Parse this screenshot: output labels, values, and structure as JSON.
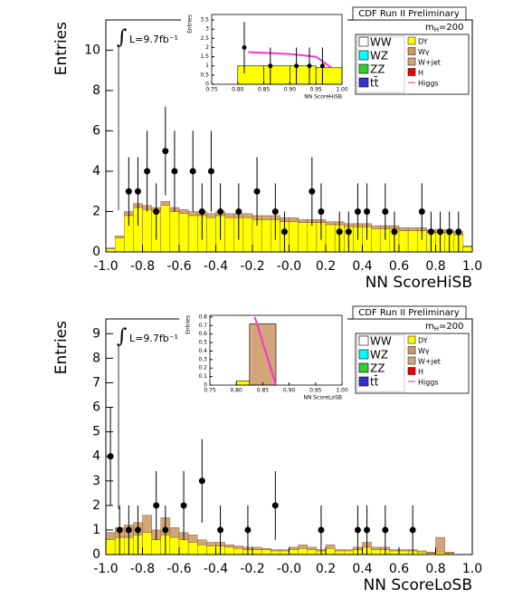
{
  "chart_data": [
    {
      "type": "histogram",
      "title": "CDF Run II Preliminary",
      "mass_label": [
        "m",
        "H",
        "=200"
      ],
      "lumi_label": "L=9.7fb⁻¹",
      "xlabel": "NN ScoreHiSB",
      "ylabel": "Entries",
      "xlim": [
        -1,
        1
      ],
      "ylim": [
        0,
        11.5
      ],
      "xticks": [
        {
          "value": -1,
          "label": "-1.0"
        },
        -0.8,
        -0.6,
        -0.4,
        -0.2,
        {
          "value": 0,
          "label": "-0.0"
        },
        0.2,
        0.4,
        0.6,
        0.8,
        {
          "value": 1,
          "label": "1.0"
        }
      ],
      "yticks": [
        0,
        2,
        4,
        6,
        8,
        10
      ],
      "bins": [
        -1,
        -0.95,
        -0.9,
        -0.85,
        -0.8,
        -0.75,
        -0.7,
        -0.65,
        -0.6,
        -0.55,
        -0.5,
        -0.45,
        -0.4,
        -0.35,
        -0.3,
        -0.25,
        -0.2,
        -0.15,
        -0.1,
        -0.05,
        0,
        0.05,
        0.1,
        0.15,
        0.2,
        0.25,
        0.3,
        0.35,
        0.4,
        0.45,
        0.5,
        0.55,
        0.6,
        0.65,
        0.7,
        0.75,
        0.8,
        0.85,
        0.9,
        0.95,
        1
      ],
      "series": [
        {
          "name": "WW",
          "color": "#ffffff"
        },
        {
          "name": "WZ",
          "color": "#00ffff"
        },
        {
          "name": "ZZ",
          "color": "#33cc33"
        },
        {
          "name": "tt̄",
          "color": "#3333cc"
        },
        {
          "name": "DY",
          "color": "#ffff00",
          "values": [
            0.15,
            0.7,
            1.8,
            2.2,
            2.1,
            2.0,
            2.3,
            2.0,
            1.9,
            1.8,
            1.8,
            1.7,
            1.8,
            1.7,
            1.7,
            1.7,
            1.6,
            1.6,
            1.6,
            1.5,
            1.5,
            1.45,
            1.45,
            1.45,
            1.35,
            1.35,
            1.25,
            1.25,
            1.25,
            1.15,
            1.15,
            1.15,
            1.05,
            1.05,
            1.05,
            0.95,
            0.95,
            0.95,
            0.85,
            0.25
          ]
        },
        {
          "name": "Wγ",
          "color": "#cc9966"
        },
        {
          "name": "W+jet",
          "color": "#d2a679",
          "values": [
            0.05,
            0.1,
            0.2,
            0.2,
            0.2,
            0.2,
            0.2,
            0.2,
            0.2,
            0.2,
            0.2,
            0.2,
            0.2,
            0.2,
            0.2,
            0.2,
            0.2,
            0.2,
            0.2,
            0.2,
            0.2,
            0.15,
            0.15,
            0.15,
            0.15,
            0.15,
            0.15,
            0.15,
            0.15,
            0.15,
            0.15,
            0.15,
            0.15,
            0.15,
            0.15,
            0.15,
            0.15,
            0.15,
            0.15,
            0.05
          ]
        },
        {
          "name": "H",
          "color": "#ee0000"
        },
        {
          "name": "Higgs",
          "color": "#ff3366",
          "style": "line"
        }
      ],
      "data": {
        "x": [
          -0.875,
          -0.825,
          -0.775,
          -0.725,
          -0.675,
          -0.625,
          -0.525,
          -0.475,
          -0.425,
          -0.375,
          -0.275,
          -0.175,
          -0.075,
          -0.025,
          0.125,
          0.175,
          0.275,
          0.325,
          0.375,
          0.425,
          0.525,
          0.575,
          0.725,
          0.775,
          0.825,
          0.875,
          0.925
        ],
        "values": [
          3,
          3,
          4,
          2,
          5,
          4,
          4,
          2,
          4,
          2,
          2,
          3,
          2,
          1,
          3,
          2,
          1,
          1,
          2,
          2,
          2,
          1,
          2,
          1,
          1,
          1,
          1
        ],
        "errors": [
          1.7,
          1.7,
          2,
          1.4,
          2.2,
          2,
          2,
          1.4,
          2,
          1.4,
          1.4,
          1.7,
          1.4,
          1,
          1.7,
          1.4,
          1,
          1,
          1.4,
          1.4,
          1.4,
          1,
          1.4,
          1,
          1,
          1,
          1
        ]
      },
      "inset": {
        "xlabel": "NN ScoreHiSB",
        "ylabel": "Entries",
        "xlim": [
          0.75,
          1
        ],
        "ylim": [
          0,
          3.8
        ],
        "xticks": [
          0.75,
          {
            "value": 0.8,
            "label": "0.80"
          },
          0.85,
          {
            "value": 0.9,
            "label": "0.90"
          },
          0.95,
          {
            "value": 1,
            "label": "1.00"
          }
        ],
        "yticks": [
          0,
          0.5,
          1,
          1.5,
          2,
          2.5,
          3,
          3.5
        ],
        "bins": [
          0.8,
          0.85,
          0.9,
          0.95,
          1
        ],
        "values": [
          1,
          1,
          1,
          0.9
        ],
        "data": {
          "x": [
            0.8125,
            0.8625,
            0.9125,
            0.9375,
            0.9625
          ],
          "values": [
            2,
            1,
            1,
            1,
            1
          ],
          "errors": [
            1.4,
            1,
            1,
            1,
            1
          ]
        },
        "line": {
          "x": [
            0.82,
            0.9,
            0.95,
            0.98
          ],
          "y": [
            1.75,
            1.65,
            1.5,
            0.9
          ]
        }
      }
    },
    {
      "type": "histogram",
      "title": "CDF Run II Preliminary",
      "mass_label": [
        "m",
        "H",
        "=200"
      ],
      "lumi_label": "L=9.7fb⁻¹",
      "xlabel": "NN ScoreLoSB",
      "ylabel": "Entries",
      "xlim": [
        -1,
        1
      ],
      "ylim": [
        0,
        9.6
      ],
      "xticks": [
        {
          "value": -1,
          "label": "-1.0"
        },
        -0.8,
        -0.6,
        -0.4,
        -0.2,
        {
          "value": 0,
          "label": "-0.0"
        },
        0.2,
        0.4,
        0.6,
        0.8,
        {
          "value": 1,
          "label": "1.0"
        }
      ],
      "yticks": [
        0,
        1,
        2,
        3,
        4,
        5,
        6,
        7,
        8,
        9
      ],
      "bins": [
        -1,
        -0.95,
        -0.9,
        -0.85,
        -0.8,
        -0.75,
        -0.7,
        -0.65,
        -0.6,
        -0.55,
        -0.5,
        -0.45,
        -0.4,
        -0.35,
        -0.3,
        -0.25,
        -0.2,
        -0.15,
        -0.1,
        -0.05,
        0,
        0.05,
        0.1,
        0.15,
        0.2,
        0.25,
        0.3,
        0.35,
        0.4,
        0.45,
        0.5,
        0.55,
        0.6,
        0.65,
        0.7,
        0.75,
        0.8,
        0.85,
        0.9,
        0.95,
        1
      ],
      "series": [
        {
          "name": "WW",
          "color": "#ffffff"
        },
        {
          "name": "WZ",
          "color": "#00ffff"
        },
        {
          "name": "ZZ",
          "color": "#33cc33"
        },
        {
          "name": "tt̄",
          "color": "#3333cc"
        },
        {
          "name": "DY",
          "color": "#ffff00",
          "values": [
            0.6,
            0.7,
            0.7,
            0.8,
            0.9,
            0.6,
            0.8,
            0.7,
            0.6,
            0.5,
            0.4,
            0.35,
            0.35,
            0.3,
            0.25,
            0.2,
            0.2,
            0.2,
            0.15,
            0.15,
            0.2,
            0.25,
            0.2,
            0.15,
            0.25,
            0.15,
            0.15,
            0.2,
            0.3,
            0.2,
            0.2,
            0.15,
            0.15,
            0.15,
            0.1,
            0.05,
            0.1,
            0.05,
            0,
            0
          ]
        },
        {
          "name": "Wγ",
          "color": "#cc9966"
        },
        {
          "name": "W+jet",
          "color": "#d2a679",
          "values": [
            0.3,
            0.4,
            0.5,
            0.5,
            0.7,
            0.4,
            0.7,
            0.4,
            0.3,
            0.3,
            0.2,
            0.15,
            0.15,
            0.1,
            0.1,
            0.1,
            0.1,
            0.05,
            0.05,
            0.05,
            0.1,
            0.15,
            0.1,
            0.05,
            0.15,
            0.05,
            0.05,
            0.1,
            0.2,
            0.1,
            0.1,
            0.05,
            0.05,
            0.05,
            0.05,
            0.05,
            0.6,
            0.05,
            0,
            0
          ]
        },
        {
          "name": "H",
          "color": "#ee0000"
        },
        {
          "name": "Higgs",
          "color": "#ff3366",
          "style": "line"
        }
      ],
      "data": {
        "x": [
          -0.975,
          -0.925,
          -0.875,
          -0.825,
          -0.725,
          -0.675,
          -0.575,
          -0.475,
          -0.375,
          -0.225,
          -0.075,
          0.175,
          0.375,
          0.425,
          0.525,
          0.675
        ],
        "values": [
          4,
          1,
          1,
          1,
          2,
          1,
          2,
          3,
          1,
          1,
          2,
          1,
          1,
          1,
          1,
          1
        ],
        "errors": [
          2,
          1,
          1,
          1,
          1.4,
          1,
          1.4,
          1.7,
          1,
          1,
          1.4,
          1,
          1,
          1,
          1,
          1
        ]
      },
      "inset": {
        "xlabel": "NN ScoreLoSB",
        "ylabel": "Entries",
        "xlim": [
          0.75,
          1
        ],
        "ylim": [
          0,
          0.82
        ],
        "xticks": [
          0.75,
          {
            "value": 0.8,
            "label": "0.80"
          },
          0.85,
          {
            "value": 0.9,
            "label": "0.90"
          },
          0.95,
          {
            "value": 1,
            "label": "1.00"
          }
        ],
        "yticks": [
          0,
          0.1,
          0.2,
          0.3,
          0.4,
          0.5,
          0.6,
          0.7,
          0.8
        ],
        "bins": [
          0.8,
          0.825,
          0.875
        ],
        "values": [
          0.05,
          0.72
        ],
        "line": {
          "x": [
            0.835,
            0.875
          ],
          "y": [
            0.8,
            0
          ]
        }
      }
    }
  ]
}
